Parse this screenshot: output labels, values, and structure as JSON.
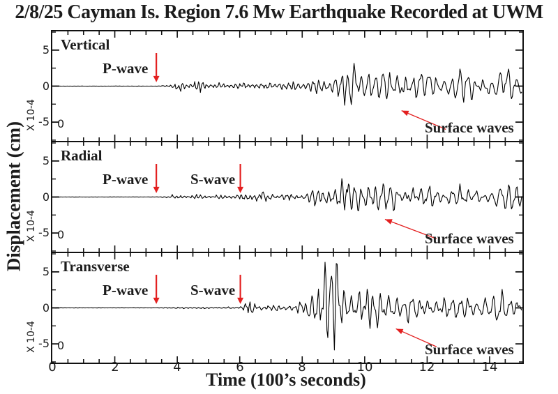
{
  "title": "2/8/25 Cayman Is. Region 7.6 Mw Earthquake Recorded at UWM",
  "y_axis_label": "Displacement (cm)",
  "x_axis_label": "Time (100’s seconds)",
  "colors": {
    "trace": "#000000",
    "arrow_red": "#e32020",
    "text": "#1c1c1c",
    "border": "#111111"
  },
  "chart_data": {
    "type": "line",
    "xlabel": "Time (100's seconds)",
    "ylabel": "Displacement (cm)",
    "x_range": [
      0,
      15.05
    ],
    "x_major_step": 2,
    "x_minor_step": 0.5,
    "x_tick_labels": [
      "0",
      "2",
      "4",
      "6",
      "8",
      "10",
      "12",
      "14"
    ],
    "x_tick_values": [
      0,
      2,
      4,
      6,
      8,
      10,
      12,
      14
    ],
    "y_range": [
      -7.6,
      7.6
    ],
    "y_major_ticks": [
      -5,
      0,
      5
    ],
    "y_minor_ticks": [
      -7.5,
      -2.5,
      2.5,
      7.5
    ],
    "y_tick_labels": [
      "5",
      "0",
      "-5"
    ],
    "y_scale_label": "X 10-4",
    "origin_label": "0",
    "grid": false,
    "legend": "none",
    "panels": [
      {
        "name": "Vertical",
        "seed": 7,
        "arrows": [
          {
            "label": "P-wave",
            "t": 3.33,
            "v_top": 4.6,
            "v_bot": 0.55
          }
        ],
        "surface": {
          "label": "Surface waves",
          "tail_t": 12.6,
          "tail_v": -6.0,
          "head_t": 11.18,
          "head_v": -3.4
        },
        "envelope": [
          [
            0,
            0.02
          ],
          [
            3.45,
            0.02
          ],
          [
            3.55,
            0.15
          ],
          [
            3.8,
            0.35
          ],
          [
            4.05,
            0.6
          ],
          [
            4.35,
            0.4
          ],
          [
            4.65,
            0.8
          ],
          [
            4.95,
            0.45
          ],
          [
            5.5,
            0.35
          ],
          [
            6.1,
            0.45
          ],
          [
            6.7,
            0.5
          ],
          [
            7.3,
            0.5
          ],
          [
            7.9,
            0.65
          ],
          [
            8.4,
            0.85
          ],
          [
            8.9,
            1.3
          ],
          [
            9.3,
            2.0
          ],
          [
            9.65,
            3.2
          ],
          [
            9.95,
            3.6
          ],
          [
            10.25,
            2.5
          ],
          [
            10.6,
            2.1
          ],
          [
            10.95,
            3.1
          ],
          [
            11.3,
            2.3
          ],
          [
            11.8,
            1.8
          ],
          [
            12.3,
            2.1
          ],
          [
            12.9,
            2.4
          ],
          [
            13.4,
            1.8
          ],
          [
            13.9,
            2.1
          ],
          [
            14.4,
            1.7
          ],
          [
            14.75,
            2.5
          ],
          [
            15.05,
            2.2
          ]
        ],
        "freq": [
          [
            0,
            8.5
          ],
          [
            6,
            7.5
          ],
          [
            8.5,
            6.0
          ],
          [
            9.6,
            4.6
          ],
          [
            11,
            4.1
          ],
          [
            15.05,
            3.8
          ]
        ]
      },
      {
        "name": "Radial",
        "seed": 13,
        "arrows": [
          {
            "label": "P-wave",
            "t": 3.33,
            "v_top": 4.6,
            "v_bot": 0.55
          },
          {
            "label": "S-wave",
            "t": 6.02,
            "v_top": 4.6,
            "v_bot": 0.55
          }
        ],
        "surface": {
          "label": "Surface waves",
          "tail_t": 12.3,
          "tail_v": -5.8,
          "head_t": 10.65,
          "head_v": -3.1
        },
        "envelope": [
          [
            0,
            0.02
          ],
          [
            3.45,
            0.02
          ],
          [
            3.55,
            0.12
          ],
          [
            3.9,
            0.28
          ],
          [
            4.5,
            0.3
          ],
          [
            5.2,
            0.25
          ],
          [
            5.95,
            0.3
          ],
          [
            6.15,
            0.5
          ],
          [
            6.55,
            0.75
          ],
          [
            6.95,
            0.5
          ],
          [
            7.4,
            0.45
          ],
          [
            7.9,
            0.6
          ],
          [
            8.35,
            0.95
          ],
          [
            8.75,
            1.35
          ],
          [
            9.15,
            2.0
          ],
          [
            9.5,
            2.9
          ],
          [
            9.75,
            3.2
          ],
          [
            10.05,
            2.3
          ],
          [
            10.45,
            2.0
          ],
          [
            10.85,
            2.3
          ],
          [
            11.25,
            1.8
          ],
          [
            11.8,
            1.5
          ],
          [
            12.4,
            1.7
          ],
          [
            13.0,
            1.4
          ],
          [
            13.6,
            1.6
          ],
          [
            14.2,
            1.3
          ],
          [
            14.7,
            1.8
          ],
          [
            15.05,
            1.8
          ]
        ],
        "freq": [
          [
            0,
            8.5
          ],
          [
            6,
            7.5
          ],
          [
            8.6,
            5.6
          ],
          [
            9.6,
            4.6
          ],
          [
            11,
            4.1
          ],
          [
            15.05,
            3.8
          ]
        ]
      },
      {
        "name": "Transverse",
        "seed": 42,
        "arrows": [
          {
            "label": "P-wave",
            "t": 3.33,
            "v_top": 4.6,
            "v_bot": 0.55
          },
          {
            "label": "S-wave",
            "t": 6.02,
            "v_top": 4.6,
            "v_bot": 0.55
          }
        ],
        "surface": {
          "label": "Surface waves",
          "tail_t": 12.3,
          "tail_v": -5.4,
          "head_t": 11.0,
          "head_v": -2.9
        },
        "envelope": [
          [
            0,
            0.02
          ],
          [
            3.45,
            0.02
          ],
          [
            3.6,
            0.07
          ],
          [
            4.2,
            0.12
          ],
          [
            5.0,
            0.1
          ],
          [
            5.95,
            0.12
          ],
          [
            6.1,
            0.55
          ],
          [
            6.25,
            1.0
          ],
          [
            6.5,
            0.6
          ],
          [
            6.95,
            0.4
          ],
          [
            7.45,
            0.5
          ],
          [
            7.95,
            0.75
          ],
          [
            8.2,
            1.5
          ],
          [
            8.45,
            3.5
          ],
          [
            8.6,
            6.3
          ],
          [
            8.75,
            7.9
          ],
          [
            8.95,
            7.3
          ],
          [
            9.15,
            5.0
          ],
          [
            9.35,
            3.2
          ],
          [
            9.6,
            2.8
          ],
          [
            9.9,
            3.4
          ],
          [
            10.2,
            2.7
          ],
          [
            10.6,
            2.2
          ],
          [
            11.0,
            2.5
          ],
          [
            11.45,
            1.9
          ],
          [
            11.9,
            1.6
          ],
          [
            12.4,
            1.8
          ],
          [
            12.9,
            1.5
          ],
          [
            13.4,
            2.0
          ],
          [
            13.9,
            1.7
          ],
          [
            14.4,
            2.1
          ],
          [
            14.8,
            1.8
          ],
          [
            15.05,
            2.0
          ]
        ],
        "freq": [
          [
            0,
            8.5
          ],
          [
            6,
            7.2
          ],
          [
            8.3,
            5.2
          ],
          [
            9.6,
            4.3
          ],
          [
            11,
            4.0
          ],
          [
            15.05,
            3.7
          ]
        ]
      }
    ]
  }
}
